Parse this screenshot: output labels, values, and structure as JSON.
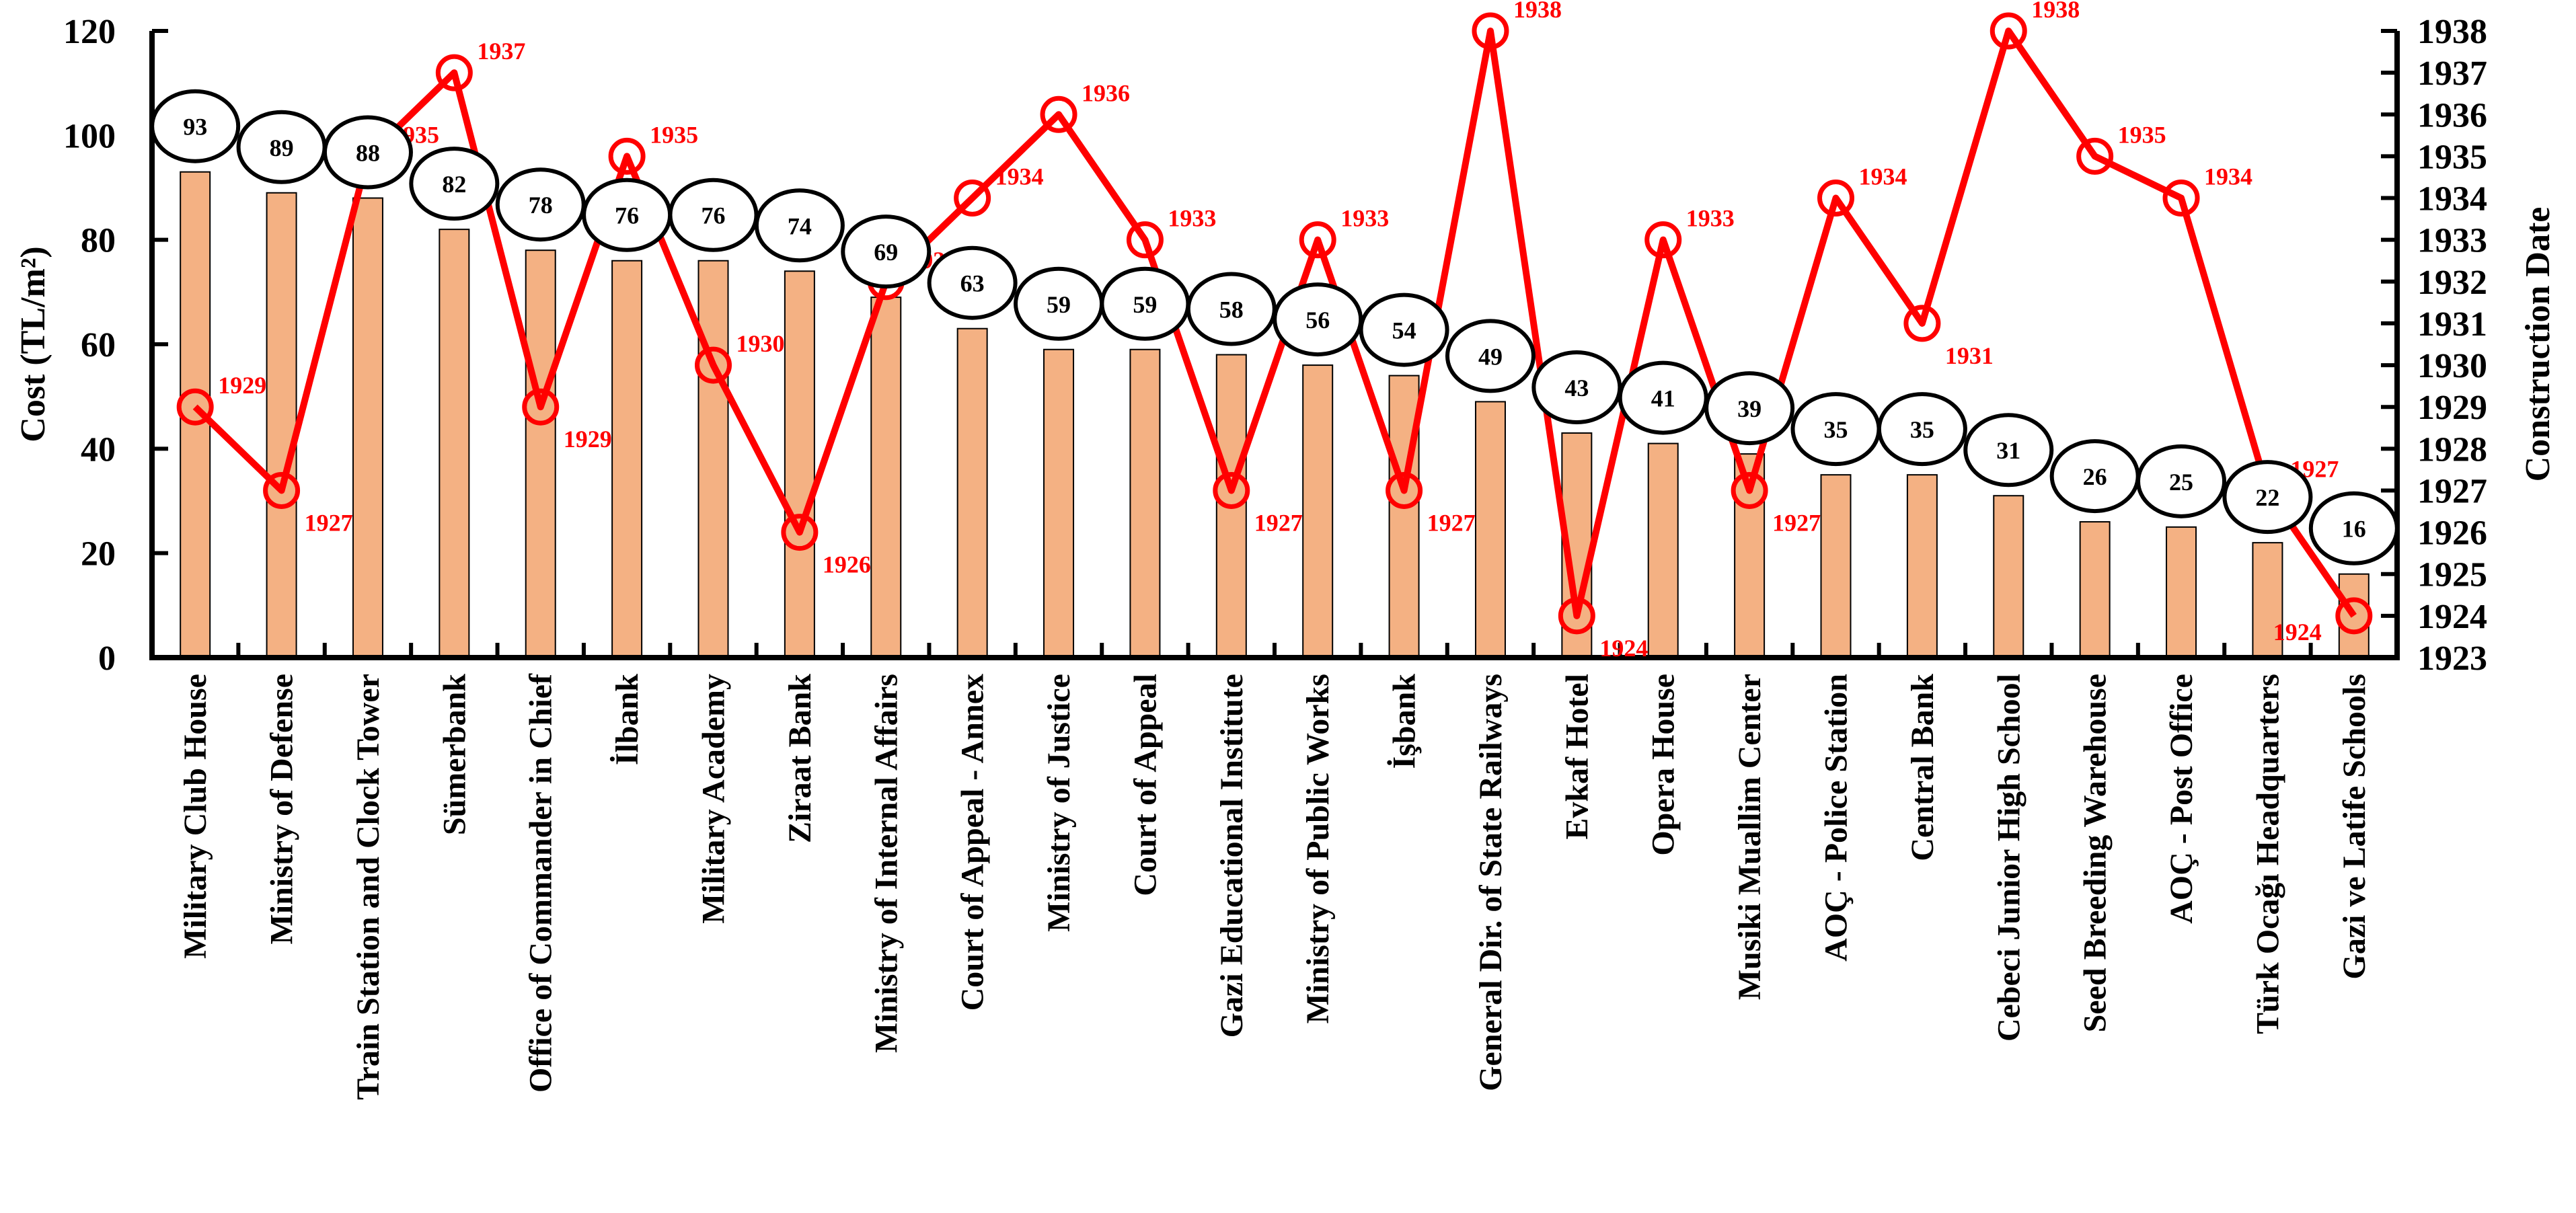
{
  "chart_data": {
    "type": "bar",
    "title": "",
    "xlabel": "",
    "ylabel": "Cost (TL/m²)",
    "y2label": "Construction Date",
    "ylim": [
      0,
      120
    ],
    "y2lim": [
      1923,
      1938
    ],
    "yticks": [
      "0",
      "20",
      "40",
      "60",
      "80",
      "100",
      "120"
    ],
    "y2ticks": [
      "1923",
      "1924",
      "1925",
      "1926",
      "1927",
      "1928",
      "1929",
      "1930",
      "1931",
      "1932",
      "1933",
      "1934",
      "1935",
      "1936",
      "1937",
      "1938"
    ],
    "categories": [
      "Military Club House",
      "Ministry of Defense",
      "Train Station and Clock Tower",
      "Sümerbank",
      "Office of Commander in Chief",
      "İlbank",
      "Military Academy",
      "Ziraat Bank",
      "Ministry of Internal Affairs",
      "Court of Appeal - Annex",
      "Ministry of Justice",
      "Court of Appeal",
      "Gazi Educational Institute",
      "Ministry of Public Works",
      "İşbank",
      "General Dir. of State Railways",
      "Evkaf Hotel",
      "Opera House",
      "Musiki Muallim Center",
      "AOÇ - Police Station",
      "Central Bank",
      "Cebeci Junior High School",
      "Seed Breeding Warehouse",
      "AOÇ - Post Office",
      "Türk Ocağı Headquarters",
      "Gazi ve Latife Schools"
    ],
    "series": [
      {
        "name": "Cost",
        "type": "bar",
        "axis": "left",
        "color": "#F4B183",
        "values": [
          93,
          89,
          88,
          82,
          78,
          76,
          76,
          74,
          69,
          63,
          59,
          59,
          58,
          56,
          54,
          49,
          43,
          41,
          39,
          35,
          35,
          31,
          26,
          25,
          22,
          16
        ],
        "labels": [
          "93",
          "89",
          "88",
          "82",
          "78",
          "76",
          "76",
          "74",
          "69",
          "63",
          "59",
          "59",
          "58",
          "56",
          "54",
          "49",
          "43",
          "41",
          "39",
          "35",
          "35",
          "31",
          "26",
          "25",
          "22",
          "16"
        ]
      },
      {
        "name": "Construction Date",
        "type": "line",
        "axis": "right",
        "color": "#FF0000",
        "values": [
          1929,
          1927,
          1935,
          1937,
          1929,
          1935,
          1930,
          1926,
          1932,
          1934,
          1936,
          1933,
          1927,
          1933,
          1927,
          1938,
          1924,
          1933,
          1927,
          1934,
          1931,
          1938,
          1935,
          1934,
          1927,
          1924
        ],
        "labels": [
          "1929",
          "1927",
          "1935",
          "1937",
          "1929",
          "1935",
          "1930",
          "1926",
          "1932",
          "1934",
          "1936",
          "1933",
          "1927",
          "1933",
          "1927",
          "1938",
          "1924",
          "1933",
          "1927",
          "1934",
          "1931",
          "1938",
          "1935",
          "1934",
          "1927",
          "1924"
        ]
      }
    ]
  }
}
